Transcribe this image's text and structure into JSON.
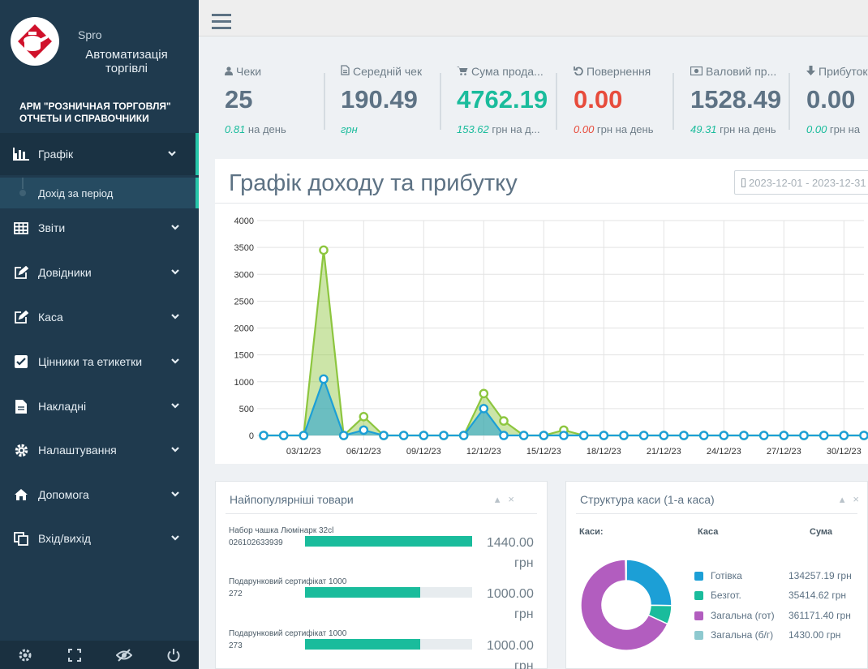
{
  "brand": {
    "name": "Spro",
    "tagline": "Автоматизація торгівлі",
    "arm_title": "АРМ \"РОЗНИЧНАЯ ТОРГОВЛЯ\"\nОТЧЕТЫ И СПРАВОЧНИКИ"
  },
  "sidebar": {
    "items": [
      {
        "label": "Графік",
        "icon": "bar-chart-icon"
      },
      {
        "label": "Звіти",
        "icon": "table-icon"
      },
      {
        "label": "Довідники",
        "icon": "edit-icon"
      },
      {
        "label": "Каса",
        "icon": "edit-icon"
      },
      {
        "label": "Цінники та етикетки",
        "icon": "check-square-icon"
      },
      {
        "label": "Накладні",
        "icon": "file-icon"
      },
      {
        "label": "Налаштування",
        "icon": "gear-icon"
      },
      {
        "label": "Допомога",
        "icon": "home-icon"
      },
      {
        "label": "Вхід/вихід",
        "icon": "copy-icon"
      }
    ],
    "subitem": "Дохід за період",
    "footer_icons": [
      "settings-icon",
      "fullscreen-icon",
      "hide-icon",
      "power-icon"
    ]
  },
  "stats": [
    {
      "label": "Чеки",
      "icon": "user-icon",
      "value": "25",
      "sub_value": "0.81",
      "sub_text": " на день",
      "value_color": "#5d7284",
      "sub_color": "#1abc9c"
    },
    {
      "label": "Середній чек",
      "icon": "file-icon",
      "value": "190.49",
      "sub_value": "грн",
      "sub_text": "",
      "value_color": "#5d7284",
      "sub_color": "#1abc9c"
    },
    {
      "label": "Сума прода...",
      "icon": "cart-icon",
      "value": "4762.19",
      "sub_value": "153.62",
      "sub_text": " грн на д...",
      "value_color": "#1abc9c",
      "sub_color": "#1abc9c"
    },
    {
      "label": "Повернення",
      "icon": "undo-icon",
      "value": "0.00",
      "sub_value": "0.00",
      "sub_text": " грн на день",
      "value_color": "#e74c3c",
      "sub_color": "#e74c3c"
    },
    {
      "label": "Валовий пр...",
      "icon": "money-icon",
      "value": "1528.49",
      "sub_value": "49.31",
      "sub_text": " грн на день",
      "value_color": "#5d7284",
      "sub_color": "#1abc9c"
    },
    {
      "label": "Прибуток",
      "icon": "arrow-down-icon",
      "value": "0.00",
      "sub_value": "0.00",
      "sub_text": " грн на",
      "value_color": "#5d7284",
      "sub_color": "#1abc9c"
    }
  ],
  "chart": {
    "title": "Графік доходу та прибутку",
    "date_range": "2023-12-01 - 2023-12-31"
  },
  "chart_data": {
    "type": "area",
    "x": [
      "01/12/23",
      "02/12/23",
      "03/12/23",
      "04/12/23",
      "05/12/23",
      "06/12/23",
      "07/12/23",
      "08/12/23",
      "09/12/23",
      "10/12/23",
      "11/12/23",
      "12/12/23",
      "13/12/23",
      "14/12/23",
      "15/12/23",
      "16/12/23",
      "17/12/23",
      "18/12/23",
      "19/12/23",
      "20/12/23",
      "21/12/23",
      "22/12/23",
      "23/12/23",
      "24/12/23",
      "25/12/23",
      "26/12/23",
      "27/12/23",
      "28/12/23",
      "29/12/23",
      "30/12/23",
      "31/12/23"
    ],
    "x_tick_labels": [
      "03/12/23",
      "06/12/23",
      "09/12/23",
      "12/12/23",
      "15/12/23",
      "18/12/23",
      "21/12/23",
      "24/12/23",
      "27/12/23",
      "30/12/23"
    ],
    "series": [
      {
        "color": "#8dc63f",
        "values": [
          0,
          0,
          0,
          3450,
          0,
          350,
          0,
          0,
          0,
          0,
          0,
          780,
          270,
          0,
          0,
          100,
          0,
          0,
          0,
          0,
          0,
          0,
          0,
          0,
          0,
          0,
          0,
          0,
          0,
          0,
          0
        ]
      },
      {
        "color": "#1c9fd6",
        "values": [
          0,
          0,
          0,
          1050,
          0,
          100,
          0,
          0,
          0,
          0,
          0,
          500,
          0,
          0,
          0,
          0,
          0,
          0,
          0,
          0,
          0,
          0,
          0,
          0,
          0,
          0,
          0,
          0,
          0,
          0,
          0
        ]
      }
    ],
    "ylim": [
      0,
      4000
    ],
    "yticks": [
      0,
      500,
      1000,
      1500,
      2000,
      2500,
      3000,
      3500,
      4000
    ],
    "grid": true
  },
  "top_products": {
    "title": "Найпопулярніші товари",
    "items": [
      {
        "name": "Набор чашка Люмінарк 32cl",
        "code": "026102633939",
        "value": "1440.00",
        "unit": "грн",
        "fraction": 1.0
      },
      {
        "name": "Подарунковий сертифікат 1000",
        "code": "272",
        "value": "1000.00",
        "unit": "грн",
        "fraction": 0.69
      },
      {
        "name": "Подарунковий сертифікат 1000",
        "code": "273",
        "value": "1000.00",
        "unit": "грн",
        "fraction": 0.69
      }
    ]
  },
  "cash_structure": {
    "title": "Структура каси (1-а каса)",
    "headers": {
      "col1": "Каси:",
      "col2": "Каса",
      "col3": "Сума"
    },
    "items": [
      {
        "name": "Готівка",
        "value": "134257.19 грн",
        "color": "#1c9fd6",
        "amount": 134257.19
      },
      {
        "name": "Безгот.",
        "value": "35414.62 грн",
        "color": "#1abc9c",
        "amount": 35414.62
      },
      {
        "name": "Загальна (гот)",
        "value": "361171.40 грн",
        "color": "#b25dbf",
        "amount": 361171.4
      },
      {
        "name": "Загальна (б/г)",
        "value": "1430.00 грн",
        "color": "#8ec9cf",
        "amount": 1430.0
      }
    ]
  },
  "panel_controls": {
    "collapse": "▴",
    "close": "×"
  }
}
